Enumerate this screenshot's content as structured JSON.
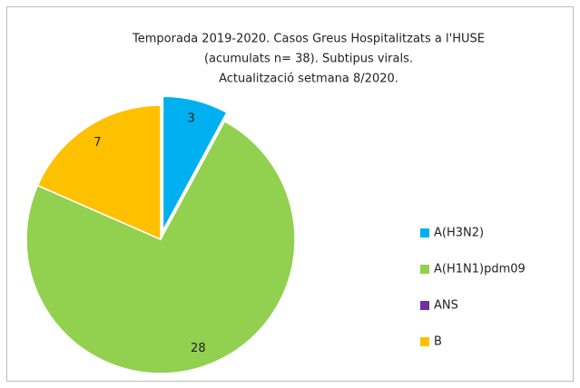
{
  "chart_data": {
    "type": "pie",
    "title": [
      "Temporada 2019-2020. Casos Greus Hospitalitzats a l'HUSE",
      "(acumulats n= 38). Subtipus virals.",
      "Actualització setmana 8/2020."
    ],
    "categories": [
      "A(H3N2)",
      "A(H1N1)pdm09",
      "ANS",
      "B"
    ],
    "values": [
      3,
      28,
      0,
      7
    ],
    "colors": [
      "#00b0f0",
      "#92d050",
      "#7030a0",
      "#ffc000"
    ],
    "legend": "right"
  }
}
